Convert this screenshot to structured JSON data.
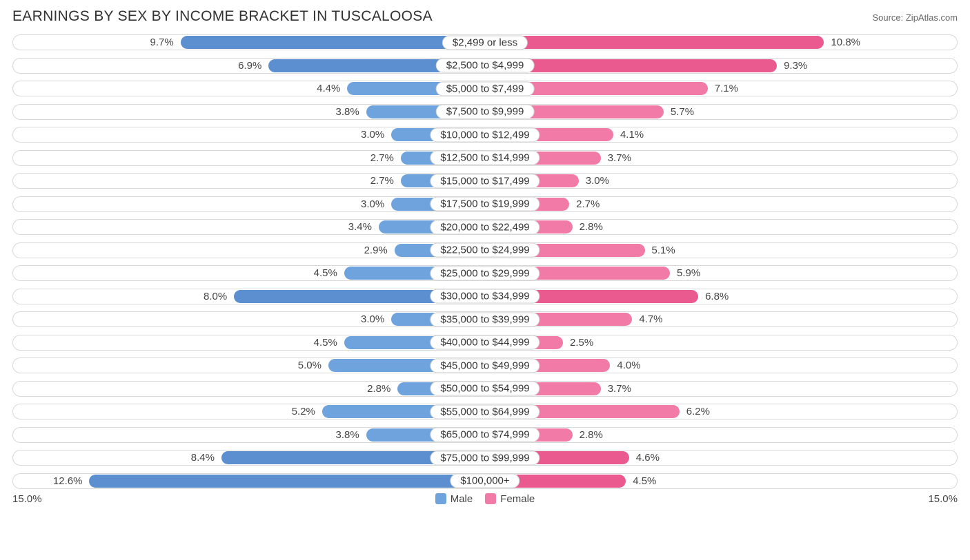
{
  "title": "EARNINGS BY SEX BY INCOME BRACKET IN TUSCALOOSA",
  "source": "Source: ZipAtlas.com",
  "chart": {
    "type": "diverging-bar",
    "axis_max": 15.0,
    "axis_left_label": "15.0%",
    "axis_right_label": "15.0%",
    "male_color": "#6fa3dd",
    "female_color": "#f17ba6",
    "male_color_dark": "#5b8fcf",
    "female_color_dark": "#eb5a8e",
    "row_bg": "#ffffff",
    "row_border": "#d8d8d8",
    "label_fontsize": 15,
    "title_fontsize": 21,
    "legend": {
      "male": "Male",
      "female": "Female"
    },
    "rows": [
      {
        "label": "$2,499 or less",
        "male": 9.7,
        "female": 10.8,
        "male_txt": "9.7%",
        "female_txt": "10.8%",
        "dark": true
      },
      {
        "label": "$2,500 to $4,999",
        "male": 6.9,
        "female": 9.3,
        "male_txt": "6.9%",
        "female_txt": "9.3%",
        "dark": true
      },
      {
        "label": "$5,000 to $7,499",
        "male": 4.4,
        "female": 7.1,
        "male_txt": "4.4%",
        "female_txt": "7.1%"
      },
      {
        "label": "$7,500 to $9,999",
        "male": 3.8,
        "female": 5.7,
        "male_txt": "3.8%",
        "female_txt": "5.7%"
      },
      {
        "label": "$10,000 to $12,499",
        "male": 3.0,
        "female": 4.1,
        "male_txt": "3.0%",
        "female_txt": "4.1%"
      },
      {
        "label": "$12,500 to $14,999",
        "male": 2.7,
        "female": 3.7,
        "male_txt": "2.7%",
        "female_txt": "3.7%"
      },
      {
        "label": "$15,000 to $17,499",
        "male": 2.7,
        "female": 3.0,
        "male_txt": "2.7%",
        "female_txt": "3.0%"
      },
      {
        "label": "$17,500 to $19,999",
        "male": 3.0,
        "female": 2.7,
        "male_txt": "3.0%",
        "female_txt": "2.7%"
      },
      {
        "label": "$20,000 to $22,499",
        "male": 3.4,
        "female": 2.8,
        "male_txt": "3.4%",
        "female_txt": "2.8%"
      },
      {
        "label": "$22,500 to $24,999",
        "male": 2.9,
        "female": 5.1,
        "male_txt": "2.9%",
        "female_txt": "5.1%"
      },
      {
        "label": "$25,000 to $29,999",
        "male": 4.5,
        "female": 5.9,
        "male_txt": "4.5%",
        "female_txt": "5.9%"
      },
      {
        "label": "$30,000 to $34,999",
        "male": 8.0,
        "female": 6.8,
        "male_txt": "8.0%",
        "female_txt": "6.8%",
        "dark": true
      },
      {
        "label": "$35,000 to $39,999",
        "male": 3.0,
        "female": 4.7,
        "male_txt": "3.0%",
        "female_txt": "4.7%"
      },
      {
        "label": "$40,000 to $44,999",
        "male": 4.5,
        "female": 2.5,
        "male_txt": "4.5%",
        "female_txt": "2.5%"
      },
      {
        "label": "$45,000 to $49,999",
        "male": 5.0,
        "female": 4.0,
        "male_txt": "5.0%",
        "female_txt": "4.0%"
      },
      {
        "label": "$50,000 to $54,999",
        "male": 2.8,
        "female": 3.7,
        "male_txt": "2.8%",
        "female_txt": "3.7%"
      },
      {
        "label": "$55,000 to $64,999",
        "male": 5.2,
        "female": 6.2,
        "male_txt": "5.2%",
        "female_txt": "6.2%"
      },
      {
        "label": "$65,000 to $74,999",
        "male": 3.8,
        "female": 2.8,
        "male_txt": "3.8%",
        "female_txt": "2.8%"
      },
      {
        "label": "$75,000 to $99,999",
        "male": 8.4,
        "female": 4.6,
        "male_txt": "8.4%",
        "female_txt": "4.6%",
        "dark": true
      },
      {
        "label": "$100,000+",
        "male": 12.6,
        "female": 4.5,
        "male_txt": "12.6%",
        "female_txt": "4.5%",
        "dark": true
      }
    ]
  }
}
